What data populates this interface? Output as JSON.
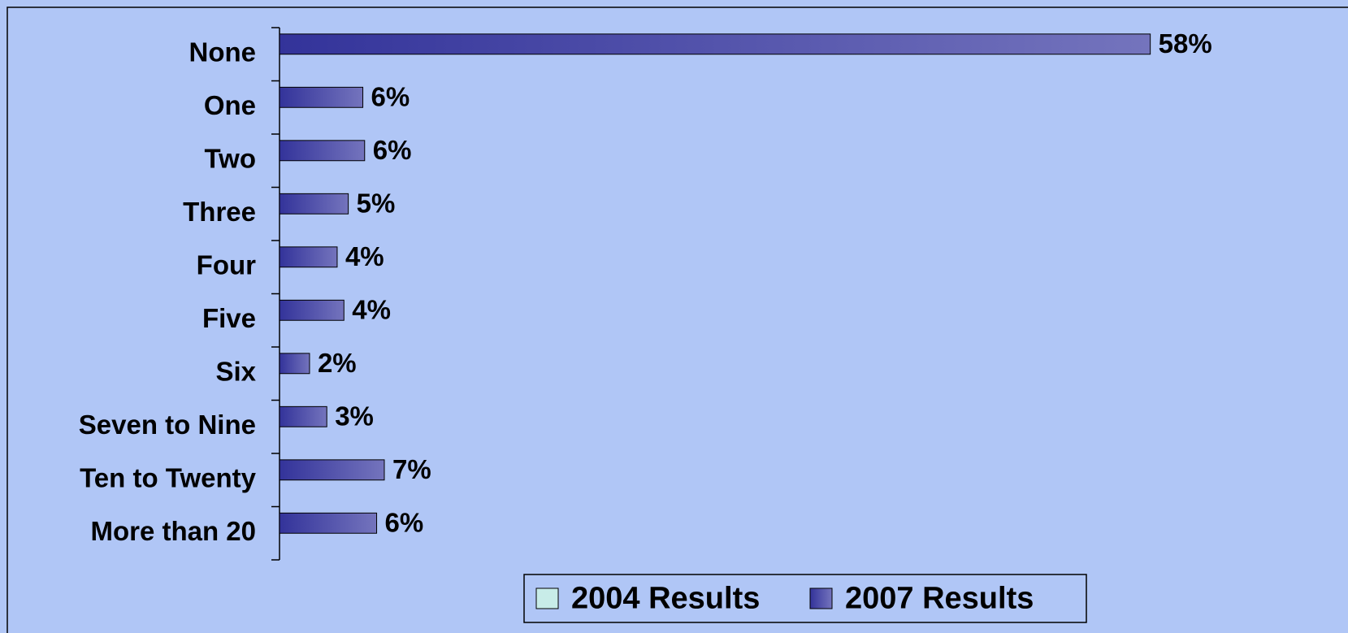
{
  "chart_data": {
    "type": "bar",
    "orientation": "horizontal",
    "categories": [
      "None",
      "One",
      "Two",
      "Three",
      "Four",
      "Five",
      "Six",
      "Seven to Nine",
      "Ten to Twenty",
      "More than 20"
    ],
    "series": [
      {
        "name": "2004 Results",
        "color": "#c8ece8",
        "values": [
          null,
          null,
          null,
          null,
          null,
          null,
          null,
          null,
          null,
          null
        ]
      },
      {
        "name": "2007 Results",
        "color": "#33339a",
        "values": [
          58,
          5.55,
          5.67,
          4.58,
          3.84,
          4.29,
          2.0,
          3.15,
          6.98,
          6.47
        ],
        "value_labels": [
          "58%",
          "6%",
          "6%",
          "5%",
          "4%",
          "4%",
          "2%",
          "3%",
          "7%",
          "6%"
        ]
      }
    ],
    "xlim": [
      0,
      65
    ],
    "legend": "bottom"
  }
}
